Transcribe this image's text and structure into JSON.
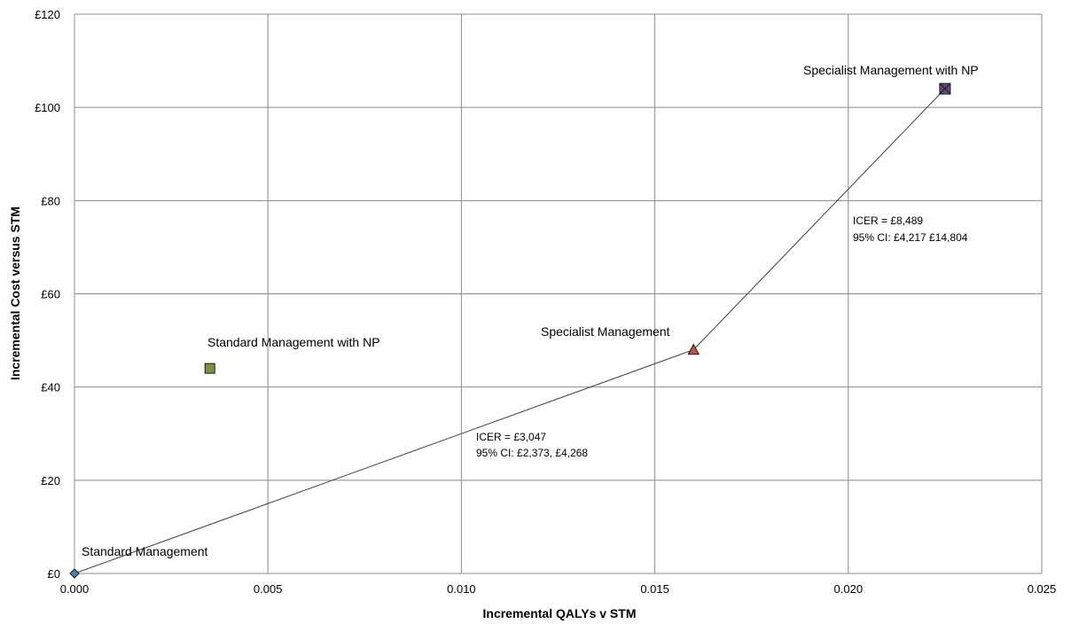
{
  "chart_data": {
    "type": "scatter",
    "xlabel": "Incremental QALYs v STM",
    "ylabel": "Incremental Cost versus STM",
    "xlim": [
      0,
      0.025
    ],
    "ylim": [
      0,
      120
    ],
    "x_ticks": [
      "0.000",
      "0.005",
      "0.010",
      "0.015",
      "0.020",
      "0.025"
    ],
    "y_ticks": [
      "£0",
      "£20",
      "£40",
      "£60",
      "£80",
      "£100",
      "£120"
    ],
    "grid": true,
    "points": [
      {
        "label": "Standard Management",
        "x": 0.0,
        "y": 0,
        "marker": "diamond",
        "color": "#4f81bd"
      },
      {
        "label": "Standard Management with NP",
        "x": 0.0035,
        "y": 44,
        "marker": "square",
        "color": "#77933c"
      },
      {
        "label": "Specialist Management",
        "x": 0.016,
        "y": 48,
        "marker": "triangle",
        "color": "#c0504d"
      },
      {
        "label": "Specialist Management with NP",
        "x": 0.0225,
        "y": 104,
        "marker": "x-square",
        "color": "#604a7b"
      }
    ],
    "frontier_line": [
      {
        "x": 0.0,
        "y": 0
      },
      {
        "x": 0.016,
        "y": 48
      },
      {
        "x": 0.0225,
        "y": 104
      }
    ],
    "annotations": [
      {
        "line1": "ICER = £3,047",
        "line2": "95% CI: £2,373, £4,268"
      },
      {
        "line1": "ICER = £8,489",
        "line2": "95% CI: £4,217 £14,804"
      }
    ]
  }
}
